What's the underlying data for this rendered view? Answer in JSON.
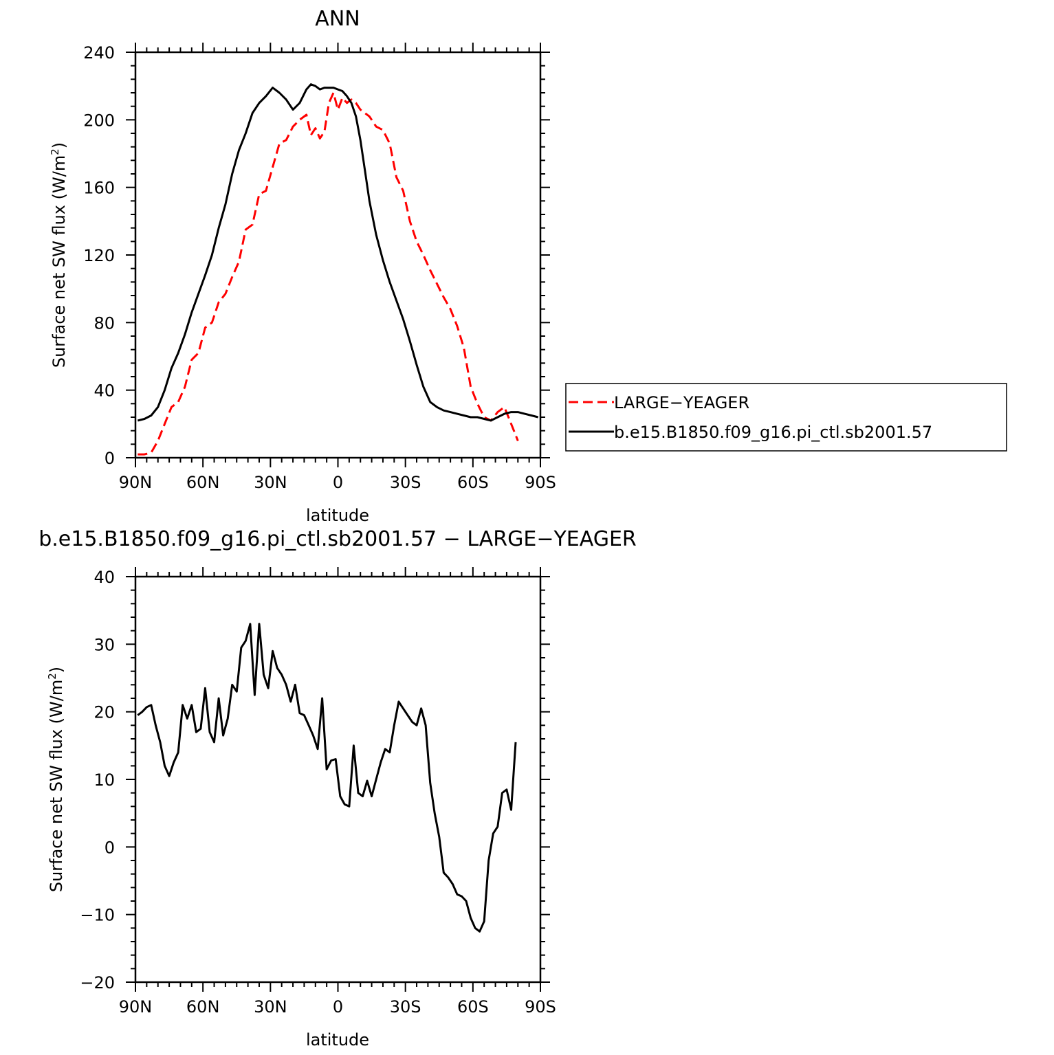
{
  "chart_data": [
    {
      "type": "line",
      "title": "ANN",
      "xlabel": "latitude",
      "ylabel": "Surface net SW flux (W/m",
      "ylabel_sup": "2",
      "ylabel_close": ")",
      "xlim": [
        90,
        -90
      ],
      "ylim": [
        0,
        240
      ],
      "x_ticks": [
        90,
        60,
        30,
        0,
        -30,
        -60,
        -90
      ],
      "x_tick_labels": [
        "90N",
        "60N",
        "30N",
        "0",
        "30S",
        "60S",
        "90S"
      ],
      "y_ticks": [
        0,
        40,
        80,
        120,
        160,
        200,
        240
      ],
      "y_tick_labels": [
        "0",
        "40",
        "80",
        "120",
        "160",
        "200",
        "240"
      ],
      "legend": "right",
      "grid": false,
      "series": [
        {
          "name": "LARGE-YEAGER",
          "color": "#ff0000",
          "dash": "dashed",
          "x": [
            89,
            86,
            83,
            80,
            77,
            74,
            71,
            68,
            65,
            62,
            59,
            56,
            53,
            50,
            47,
            44,
            41,
            38,
            35,
            32,
            29,
            26,
            23,
            20,
            17,
            14,
            12,
            10,
            8,
            6,
            4,
            2,
            0,
            -2,
            -4,
            -6,
            -8,
            -10,
            -12,
            -14,
            -17,
            -20,
            -23,
            -26,
            -29,
            -32,
            -35,
            -38,
            -41,
            -44,
            -47,
            -50,
            -53,
            -56,
            -59,
            -62,
            -65,
            -68,
            -71,
            -74,
            -77,
            -80
          ],
          "y": [
            2,
            2,
            3,
            10,
            20,
            30,
            33,
            42,
            58,
            62,
            77,
            80,
            92,
            97,
            107,
            116,
            135,
            138,
            156,
            158,
            172,
            186,
            188,
            196,
            200,
            203,
            191,
            195,
            189,
            193,
            210,
            216,
            206,
            213,
            210,
            212,
            210,
            206,
            204,
            202,
            196,
            194,
            186,
            166,
            158,
            140,
            128,
            120,
            111,
            103,
            95,
            88,
            78,
            65,
            42,
            32,
            24,
            22,
            27,
            30,
            20,
            10
          ]
        },
        {
          "name": "b.e15.B1850.f09_g16.pi_ctl.sb2001.57",
          "color": "#000000",
          "dash": "solid",
          "x": [
            89,
            86,
            83,
            80,
            77,
            74,
            71,
            68,
            65,
            62,
            59,
            56,
            53,
            50,
            47,
            44,
            41,
            38,
            35,
            32,
            29,
            26,
            23,
            20,
            17,
            14,
            12,
            10,
            8,
            6,
            4,
            2,
            0,
            -2,
            -4,
            -6,
            -8,
            -10,
            -12,
            -14,
            -17,
            -20,
            -23,
            -26,
            -29,
            -32,
            -35,
            -38,
            -41,
            -44,
            -47,
            -50,
            -53,
            -56,
            -59,
            -62,
            -65,
            -68,
            -71,
            -74,
            -77,
            -80,
            -83,
            -86,
            -89
          ],
          "y": [
            22,
            23,
            25,
            30,
            40,
            53,
            62,
            73,
            86,
            97,
            108,
            120,
            136,
            150,
            168,
            182,
            192,
            204,
            210,
            214,
            219,
            216,
            212,
            206,
            210,
            218,
            221,
            220,
            218,
            219,
            219,
            219,
            218,
            217,
            214,
            210,
            202,
            188,
            170,
            152,
            132,
            117,
            104,
            93,
            82,
            69,
            55,
            42,
            33,
            30,
            28,
            27,
            26,
            25,
            24,
            24,
            23,
            22,
            24,
            26,
            27,
            27,
            26,
            25,
            24
          ]
        }
      ]
    },
    {
      "type": "line",
      "title": "b.e15.B1850.f09_g16.pi_ctl.sb2001.57 − LARGE−YEAGER",
      "xlabel": "latitude",
      "ylabel": "Surface net SW flux (W/m",
      "ylabel_sup": "2",
      "ylabel_close": ")",
      "xlim": [
        90,
        -90
      ],
      "ylim": [
        -20,
        40
      ],
      "x_ticks": [
        90,
        60,
        30,
        0,
        -30,
        -60,
        -90
      ],
      "x_tick_labels": [
        "90N",
        "60N",
        "30N",
        "0",
        "30S",
        "60S",
        "90S"
      ],
      "y_ticks": [
        -20,
        -10,
        0,
        10,
        20,
        30,
        40
      ],
      "y_tick_labels": [
        "−20",
        "−10",
        "0",
        "10",
        "20",
        "30",
        "40"
      ],
      "grid": false,
      "series": [
        {
          "color": "#000000",
          "dash": "solid",
          "x": [
            89,
            87,
            85,
            83,
            81,
            79,
            77,
            75,
            73,
            71,
            69,
            67,
            65,
            63,
            61,
            59,
            57,
            55,
            53,
            51,
            49,
            47,
            45,
            43,
            41,
            39,
            37,
            35,
            33,
            31,
            29,
            27,
            25,
            23,
            21,
            19,
            17,
            15,
            13,
            11,
            9,
            7,
            5,
            3,
            1,
            -1,
            -3,
            -5,
            -7,
            -9,
            -11,
            -13,
            -15,
            -17,
            -19,
            -21,
            -23,
            -25,
            -27,
            -29,
            -31,
            -33,
            -35,
            -37,
            -39,
            -41,
            -43,
            -45,
            -47,
            -49,
            -51,
            -53,
            -55,
            -57,
            -59,
            -61,
            -63,
            -65,
            -67,
            -69,
            -71,
            -73,
            -75,
            -77,
            -79
          ],
          "y": [
            19.5,
            20,
            20.7,
            21,
            18,
            15.5,
            12,
            10.5,
            12.5,
            14,
            21,
            19,
            21,
            17,
            17.5,
            23.5,
            17,
            15.5,
            22,
            16.5,
            19,
            24,
            23,
            29.5,
            30.5,
            33,
            22.5,
            33,
            25.5,
            23.5,
            29,
            26.5,
            25.5,
            24,
            21.5,
            24,
            19.8,
            19.5,
            18,
            16.5,
            14.5,
            22,
            11.5,
            12.8,
            13,
            7.5,
            6.3,
            6,
            15,
            8,
            7.5,
            9.8,
            7.5,
            10,
            12.5,
            14.5,
            14,
            18,
            21.5,
            20.5,
            19.5,
            18.5,
            18,
            20.5,
            18,
            9.5,
            5,
            1.5,
            -3.8,
            -4.5,
            -5.5,
            -7,
            -7.3,
            -8,
            -10.5,
            -12,
            -12.5,
            -11,
            -2,
            2,
            3,
            8,
            8.5,
            5.5,
            15.5
          ]
        }
      ]
    }
  ],
  "legend": {
    "entries": [
      "LARGE−YEAGER",
      "b.e15.B1850.f09_g16.pi_ctl.sb2001.57"
    ]
  }
}
